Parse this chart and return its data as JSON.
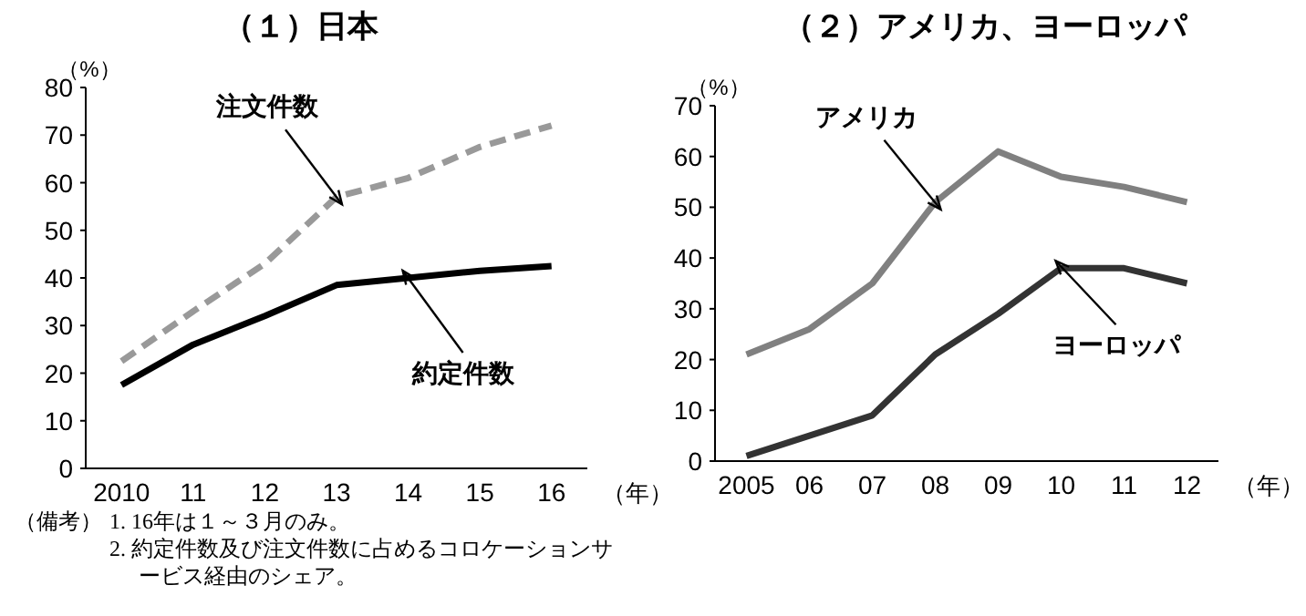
{
  "chart_data": [
    {
      "type": "line",
      "title": "（１）日本",
      "ylabel": "（%）",
      "xlabel": "（年）",
      "categories": [
        "2010",
        "11",
        "12",
        "13",
        "14",
        "15",
        "16"
      ],
      "series": [
        {
          "name": "注文件数",
          "color": "#999999",
          "line_style": "dashed",
          "values": [
            22.5,
            33,
            43,
            57,
            61,
            67.5,
            72
          ]
        },
        {
          "name": "約定件数",
          "color": "#000000",
          "line_style": "solid",
          "values": [
            17.5,
            26,
            32,
            38.5,
            40,
            41.5,
            42.5
          ]
        }
      ],
      "ylim": [
        0,
        80
      ],
      "yticks": [
        0,
        10,
        20,
        30,
        40,
        50,
        60,
        70,
        80
      ],
      "grid": false,
      "legend": false,
      "marker": "none",
      "annotations": [
        "（備考）",
        "1. 16年は１～３月のみ。",
        "2. 約定件数及び注文件数に占めるコロケーションサービス経由のシェア。"
      ]
    },
    {
      "type": "line",
      "title": "（２）アメリカ、ヨーロッパ",
      "ylabel": "（%）",
      "xlabel": "（年）",
      "categories": [
        "2005",
        "06",
        "07",
        "08",
        "09",
        "10",
        "11",
        "12"
      ],
      "series": [
        {
          "name": "アメリカ",
          "color": "#808080",
          "line_style": "solid",
          "values": [
            21,
            26,
            35,
            51,
            61,
            56,
            54,
            51
          ]
        },
        {
          "name": "ヨーロッパ",
          "color": "#333333",
          "line_style": "solid",
          "values": [
            1,
            5,
            9,
            21,
            29,
            38,
            38,
            35
          ]
        }
      ],
      "ylim": [
        0,
        70
      ],
      "yticks": [
        0,
        10,
        20,
        30,
        40,
        50,
        60,
        70
      ],
      "grid": false,
      "legend": false,
      "marker": "none"
    }
  ]
}
